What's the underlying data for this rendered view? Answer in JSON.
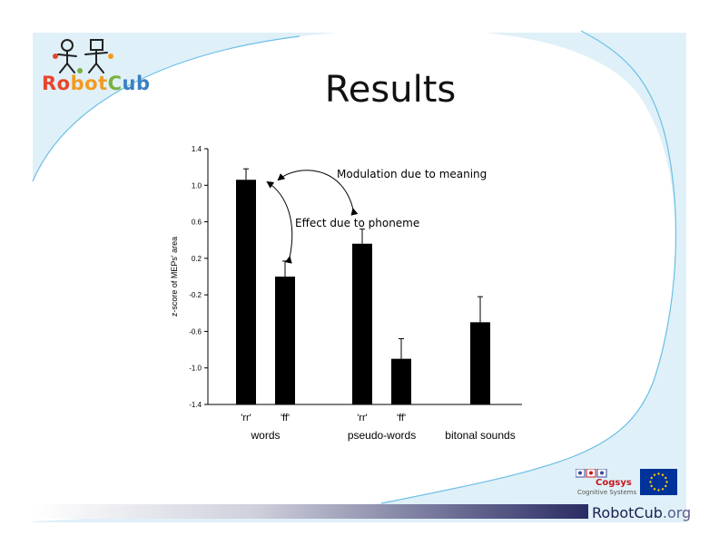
{
  "slide": {
    "title": "Results",
    "logo_text_parts": [
      "Ro",
      "bot",
      "C",
      "ub"
    ],
    "footer_brand": "RobotCub",
    "footer_domain": ".org",
    "partner_name": "Cogsys",
    "partner_subtitle": "Cognitive Systems"
  },
  "colors": {
    "background_blue": "#dff0f8",
    "curve_blue": "#6bbfe6",
    "footer_navy": "#1c1e4e",
    "cogsys_red": "#c8161d",
    "eu_blue": "#003399",
    "eu_star": "#ffcc00"
  },
  "icons": [
    "robotcub-logo-icon",
    "cogsys-logo-icon",
    "eu-flag-icon"
  ],
  "chart_data": {
    "type": "bar",
    "ylabel": "z-score of MEPs' area",
    "ylim": [
      -1.4,
      1.4
    ],
    "yticks": [
      -1.4,
      -1.0,
      -0.6,
      -0.2,
      0.2,
      0.6,
      1.0,
      1.4
    ],
    "ytick_labels": [
      "-1.4",
      "-1.0",
      "-0.6",
      "-0.2",
      "0.2",
      "0.6",
      "1.0",
      "1.4"
    ],
    "grid": false,
    "legend": "none",
    "bars": [
      {
        "label": "'rr'",
        "value": 1.06,
        "error": 0.12
      },
      {
        "label": "'ff'",
        "value": 0.0,
        "error": 0.17
      },
      {
        "label": "'rr'",
        "value": 0.36,
        "error": 0.16
      },
      {
        "label": "'ff'",
        "value": -0.9,
        "error": 0.22
      },
      {
        "label": "",
        "value": -0.5,
        "error": 0.28
      }
    ],
    "groups": [
      {
        "label": "words",
        "bars": [
          0,
          1
        ]
      },
      {
        "label": "pseudo-words",
        "bars": [
          2,
          3
        ]
      },
      {
        "label": "bitonal sounds",
        "bars": [
          4
        ]
      }
    ],
    "annotations": [
      {
        "text": "Modulation due to meaning",
        "from_bar": 0,
        "to_bar": 2
      },
      {
        "text": "Effect due to phoneme",
        "from_bar": 0,
        "to_bar": 1
      }
    ]
  }
}
